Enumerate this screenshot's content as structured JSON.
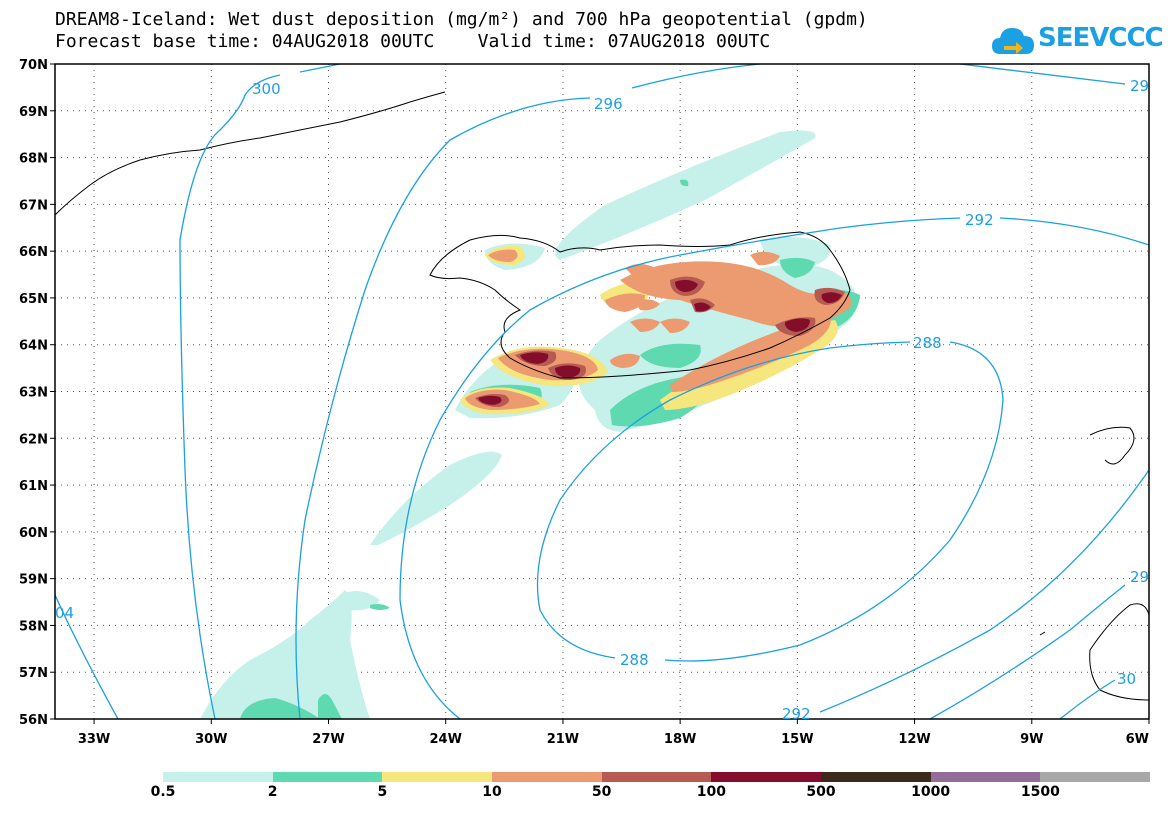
{
  "title": {
    "line1": "DREAM8-Iceland: Wet dust deposition (mg/m²) and 700 hPa geopotential (gpdm)",
    "line2": "Forecast base time: 04AUG2018 00UTC    Valid time: 07AUG2018 00UTC"
  },
  "logo": {
    "text": "SEEVCCC",
    "icon": "cloud-arrow-icon",
    "color": "#1ba0e2"
  },
  "map": {
    "lat_labels": [
      "70N",
      "69N",
      "68N",
      "67N",
      "66N",
      "65N",
      "64N",
      "63N",
      "62N",
      "61N",
      "60N",
      "59N",
      "58N",
      "57N",
      "56N"
    ],
    "lon_labels": [
      "33W",
      "30W",
      "27W",
      "24W",
      "21W",
      "18W",
      "15W",
      "12W",
      "9W",
      "6W"
    ],
    "lat_range": [
      56,
      70
    ],
    "lon_range": [
      -34.0,
      -6.0
    ],
    "grid": true,
    "contour_color": "#1ba0e2",
    "contour_labels": [
      "300",
      "296",
      "29",
      "292",
      "288",
      "288",
      "292",
      "29",
      "30",
      "04"
    ]
  },
  "legend": {
    "colors": [
      "#c6f0ea",
      "#5ed9b0",
      "#f5e67d",
      "#ec9a70",
      "#b75a52",
      "#850d2c",
      "#3e2a1c",
      "#936d99",
      "#a8a8a8"
    ],
    "labels": [
      "0.5",
      "2",
      "5",
      "10",
      "50",
      "100",
      "500",
      "1000",
      "1500"
    ]
  }
}
